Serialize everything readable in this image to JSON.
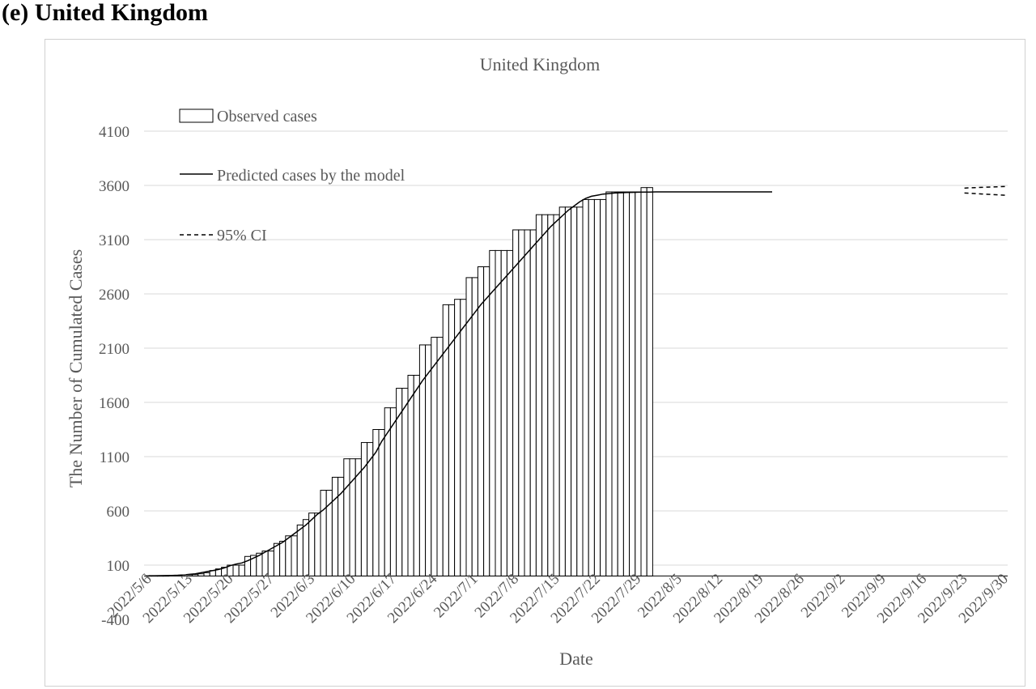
{
  "panel_label": "(e)  United Kingdom",
  "chart_data": {
    "type": "bar",
    "title": "United Kingdom",
    "xlabel": "Date",
    "ylabel": "The Number of Cumulated Cases",
    "ylim": [
      -400,
      4100
    ],
    "y_ticks": [
      -400,
      100,
      600,
      1100,
      1600,
      2100,
      2600,
      3100,
      3600,
      4100
    ],
    "y_tick_labels": [
      "-400",
      "100",
      "600",
      "1100",
      "1600",
      "2100",
      "2600",
      "3100",
      "3600",
      "4100"
    ],
    "grid": true,
    "x_tick_labels": [
      "2022/5/6",
      "2022/5/13",
      "2022/5/20",
      "2022/5/27",
      "2022/6/3",
      "2022/6/10",
      "2022/6/17",
      "2022/6/24",
      "2022/7/1",
      "2022/7/8",
      "2022/7/15",
      "2022/7/22",
      "2022/7/29",
      "2022/8/5",
      "2022/8/12",
      "2022/8/19",
      "2022/8/26",
      "2022/9/2",
      "2022/9/9",
      "2022/9/16",
      "2022/9/23",
      "2022/9/30"
    ],
    "legend": {
      "placement": "top-left",
      "entries": [
        {
          "label": "Observed cases",
          "style": "bar"
        },
        {
          "label": "Predicted cases by the model",
          "style": "solid-line"
        },
        {
          "label": "95% CI",
          "style": "dashed-line"
        }
      ]
    },
    "series": [
      {
        "name": "Observed cases",
        "type": "bar",
        "start_date": "2022/5/6",
        "values": [
          2,
          2,
          2,
          2,
          5,
          7,
          9,
          11,
          13,
          20,
          30,
          50,
          65,
          80,
          100,
          100,
          100,
          180,
          190,
          210,
          230,
          230,
          300,
          320,
          370,
          370,
          470,
          520,
          580,
          580,
          790,
          790,
          910,
          910,
          1080,
          1080,
          1080,
          1230,
          1230,
          1350,
          1350,
          1550,
          1550,
          1730,
          1730,
          1850,
          1850,
          2130,
          2130,
          2200,
          2200,
          2500,
          2500,
          2550,
          2550,
          2750,
          2750,
          2850,
          2850,
          3000,
          3000,
          3000,
          3000,
          3190,
          3190,
          3190,
          3190,
          3330,
          3330,
          3330,
          3330,
          3400,
          3400,
          3400,
          3400,
          3470,
          3470,
          3470,
          3470,
          3540,
          3540,
          3540,
          3540,
          3540,
          3540,
          3580,
          3580
        ]
      },
      {
        "name": "Predicted cases by the model",
        "type": "line",
        "start_date": "2022/5/6",
        "values": [
          2,
          2,
          3,
          4,
          5,
          7,
          10,
          15,
          20,
          30,
          40,
          50,
          60,
          75,
          95,
          110,
          120,
          140,
          165,
          190,
          220,
          250,
          280,
          310,
          350,
          390,
          430,
          470,
          520,
          570,
          610,
          660,
          710,
          760,
          820,
          880,
          940,
          1000,
          1070,
          1140,
          1240,
          1320,
          1400,
          1480,
          1560,
          1640,
          1720,
          1800,
          1870,
          1940,
          2010,
          2080,
          2150,
          2220,
          2290,
          2360,
          2430,
          2500,
          2560,
          2620,
          2680,
          2740,
          2800,
          2860,
          2920,
          2980,
          3040,
          3100,
          3160,
          3220,
          3270,
          3320,
          3370,
          3410,
          3450,
          3480,
          3500,
          3510,
          3520,
          3525,
          3530,
          3532,
          3534,
          3536,
          3537,
          3538,
          3539,
          3540,
          3540,
          3540,
          3540,
          3540,
          3540,
          3540,
          3540,
          3540,
          3540,
          3540,
          3540,
          3540,
          3540,
          3540,
          3540,
          3540,
          3540,
          3540,
          3540,
          3540
        ]
      },
      {
        "name": "95% CI upper",
        "type": "dashed-line",
        "start_date": "2022/9/23",
        "values": [
          3575,
          3578,
          3580,
          3582,
          3584,
          3586,
          3588,
          3590
        ]
      },
      {
        "name": "95% CI lower",
        "type": "dashed-line",
        "start_date": "2022/9/23",
        "values": [
          3530,
          3527,
          3524,
          3521,
          3518,
          3515,
          3512,
          3509
        ]
      }
    ]
  }
}
